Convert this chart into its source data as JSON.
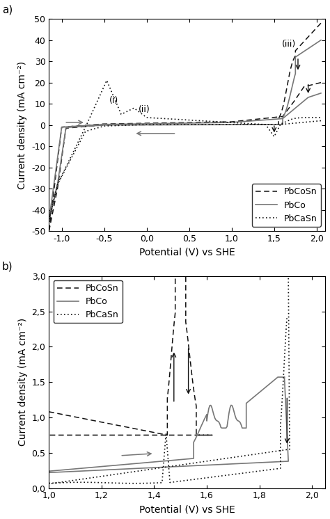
{
  "panel_a": {
    "xlabel": "Potential (V) vs SHE",
    "ylabel": "Current density (mA cm⁻²)",
    "xlim": [
      -1.15,
      2.1
    ],
    "ylim": [
      -50,
      50
    ],
    "xticks": [
      -1.0,
      -0.5,
      0.0,
      0.5,
      1.0,
      1.5,
      2.0
    ],
    "xtick_labels": [
      "-1,0",
      "-0,5",
      "0,0",
      "0,5",
      "1,0",
      "1,5",
      "2,0"
    ],
    "yticks": [
      -50,
      -40,
      -30,
      -20,
      -10,
      0,
      10,
      20,
      30,
      40,
      50
    ],
    "ytick_labels": [
      "-50",
      "-40",
      "-30",
      "-20",
      "-10",
      "0",
      "10",
      "20",
      "30",
      "40",
      "50"
    ]
  },
  "panel_b": {
    "xlabel": "Potential (V) vs SHE",
    "ylabel": "Current density (mA cm⁻²)",
    "xlim": [
      1.0,
      2.05
    ],
    "ylim": [
      0.0,
      3.0
    ],
    "xticks": [
      1.0,
      1.2,
      1.4,
      1.6,
      1.8,
      2.0
    ],
    "xtick_labels": [
      "1,0",
      "1,2",
      "1,4",
      "1,6",
      "1,8",
      "2,0"
    ],
    "yticks": [
      0.0,
      0.5,
      1.0,
      1.5,
      2.0,
      2.5,
      3.0
    ],
    "ytick_labels": [
      "0,0",
      "0,5",
      "1,0",
      "1,5",
      "2,0",
      "2,5",
      "3,0"
    ]
  }
}
